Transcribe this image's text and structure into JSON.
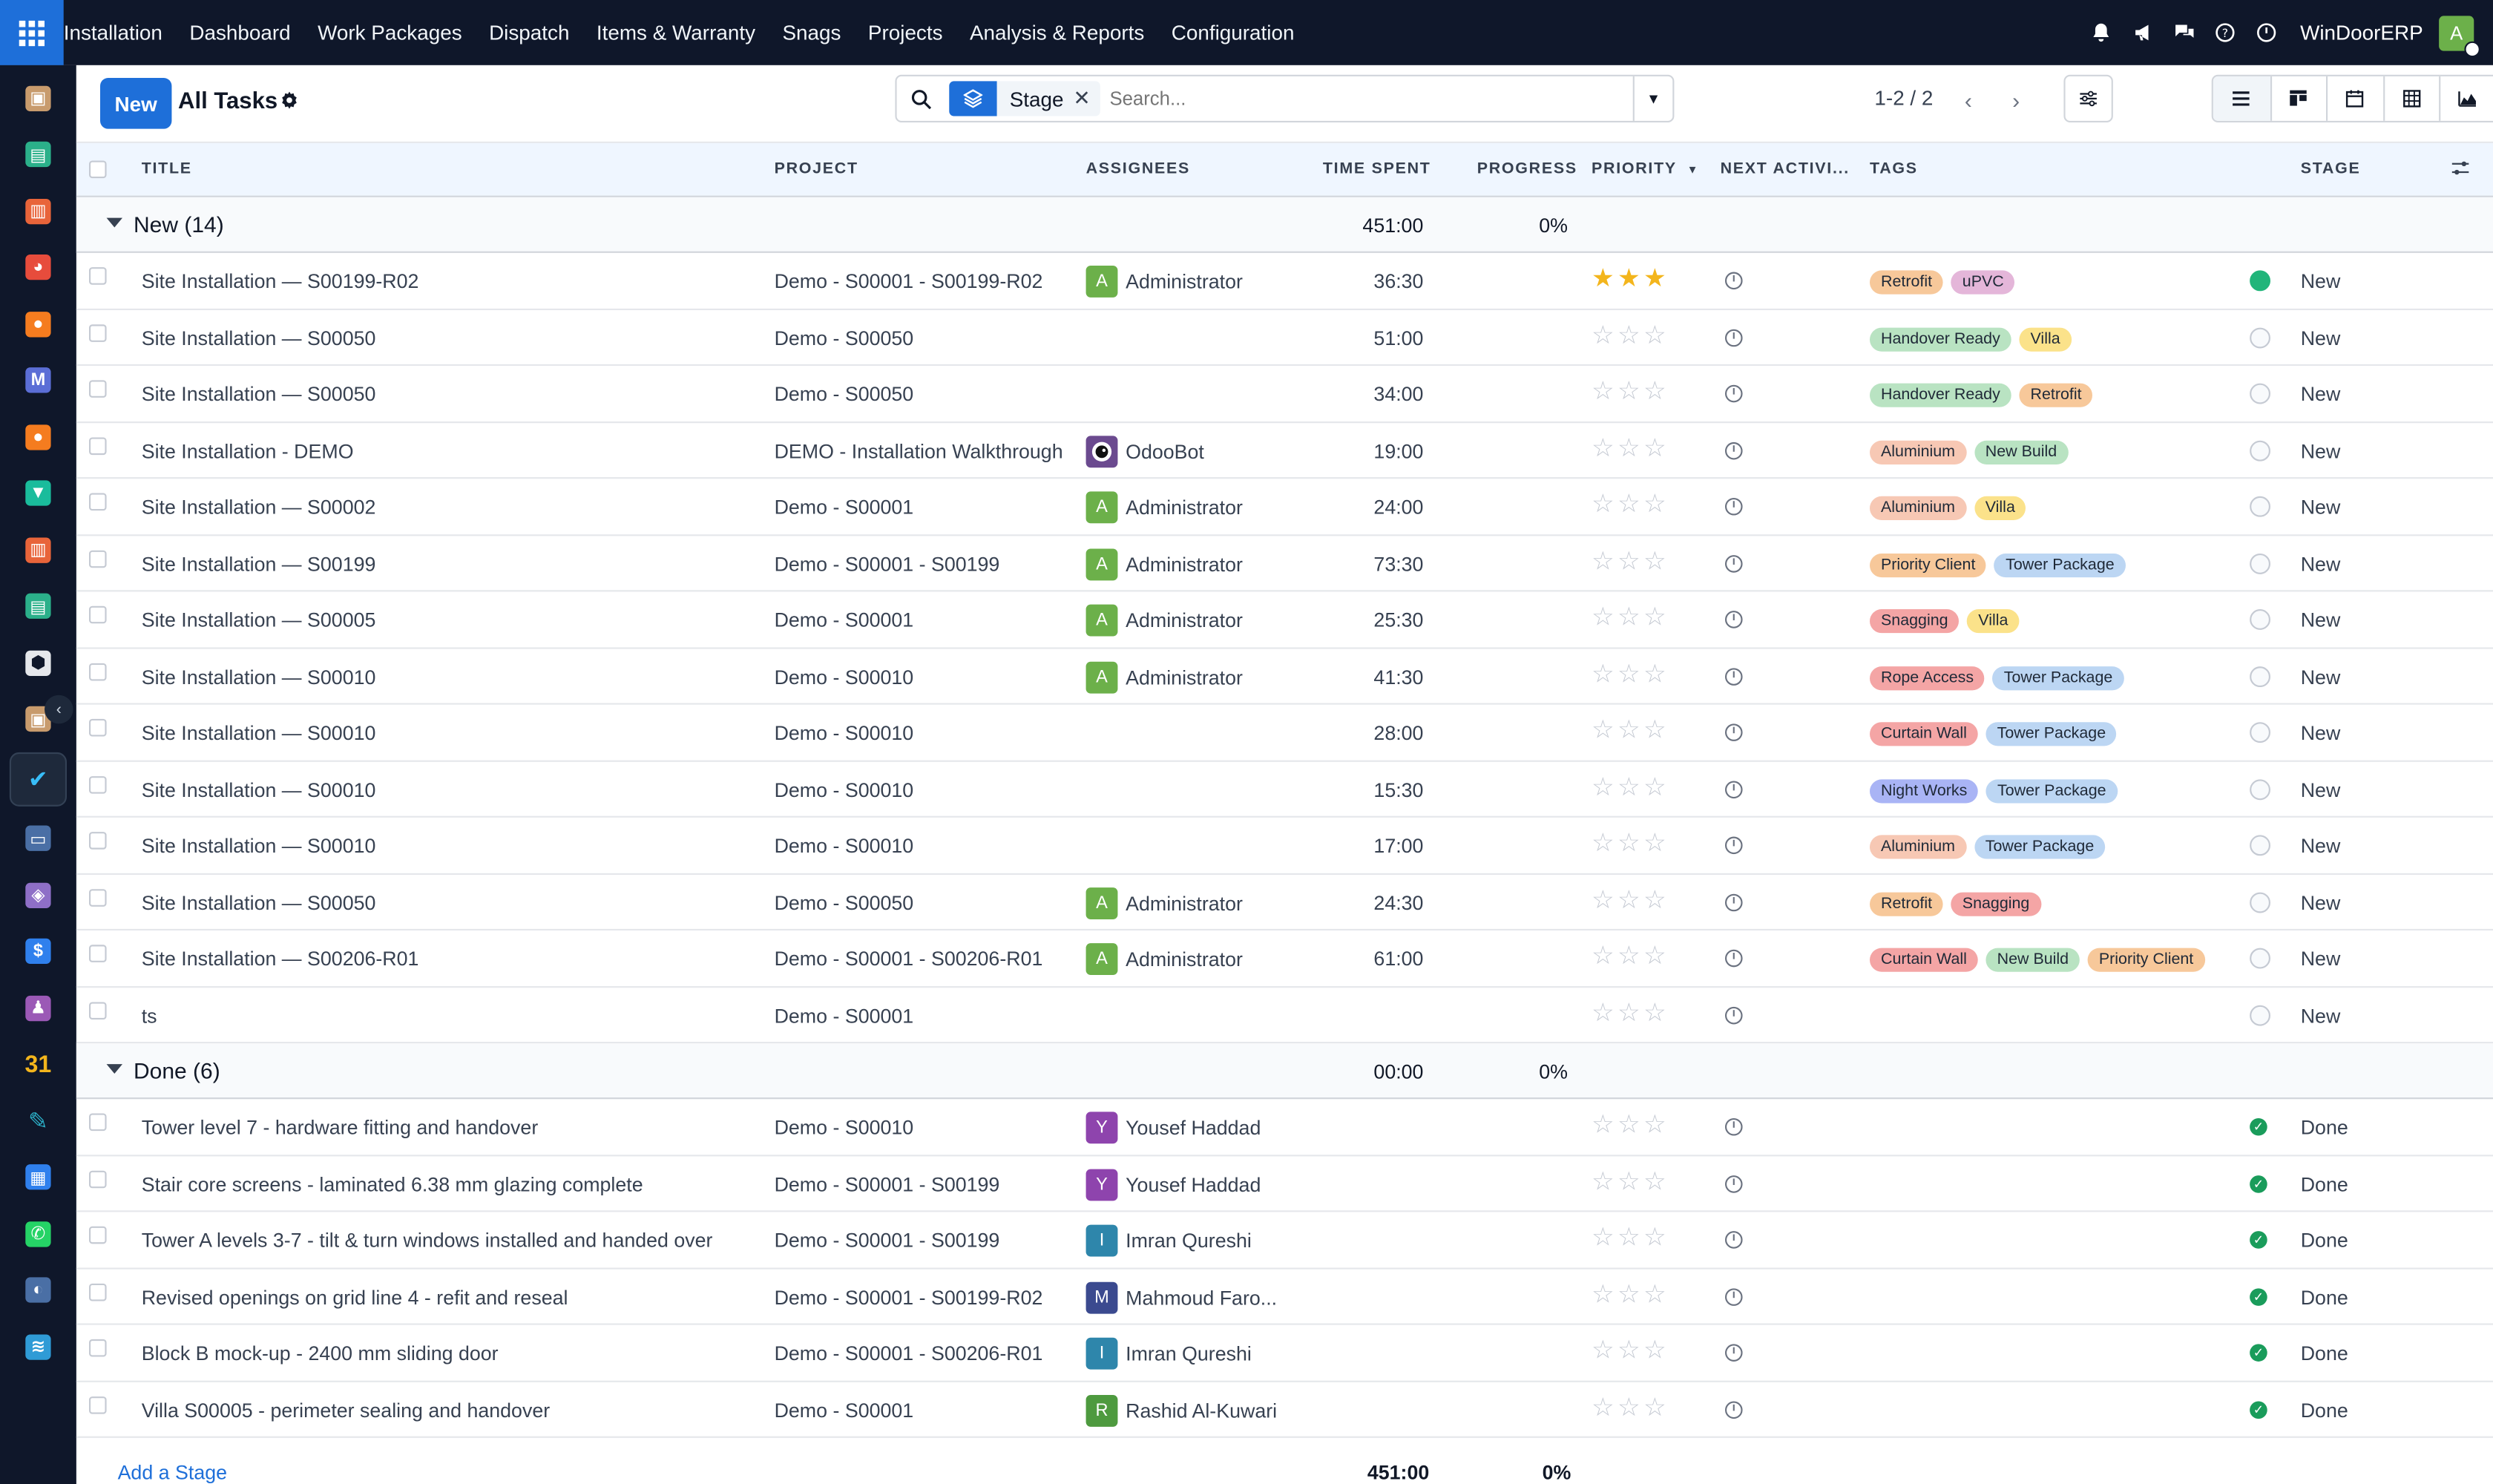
{
  "topbar": {
    "menu": [
      "Installation",
      "Dashboard",
      "Work Packages",
      "Dispatch",
      "Items & Warranty",
      "Snags",
      "Projects",
      "Analysis & Reports",
      "Configuration"
    ],
    "company": "WinDoorERP",
    "user_initial": "A"
  },
  "sidebar": {
    "icons": [
      {
        "name": "app-photo-icon",
        "color": "#c89b6d",
        "glyph": "▣"
      },
      {
        "name": "app-contacts-icon",
        "color": "#2bb08a",
        "glyph": "▤"
      },
      {
        "name": "app-reports-icon",
        "color": "#e8643a",
        "glyph": "▥"
      },
      {
        "name": "app-pie-icon",
        "color": "#e74c3c",
        "glyph": "◕"
      },
      {
        "name": "app-chat-icon",
        "color": "#f57c1f",
        "glyph": "●"
      },
      {
        "name": "app-mail-icon",
        "color": "#5b6ed6",
        "glyph": "M"
      },
      {
        "name": "app-chat2-icon",
        "color": "#f57c1f",
        "glyph": "●"
      },
      {
        "name": "app-sign-icon",
        "color": "#1abc9c",
        "glyph": "▼"
      },
      {
        "name": "app-stats-icon",
        "color": "#e8643a",
        "glyph": "▥"
      },
      {
        "name": "app-contacts2-icon",
        "color": "#2bb08a",
        "glyph": "▤"
      },
      {
        "name": "app-inventory-icon",
        "color": "#e5e7eb",
        "glyph": "⬢"
      },
      {
        "name": "app-photo2-icon",
        "color": "#c89b6d",
        "glyph": "▣"
      },
      {
        "name": "app-project-icon",
        "color": "#1e293b",
        "glyph": "✔",
        "active": true
      },
      {
        "name": "app-knowledge-icon",
        "color": "#4a6fa5",
        "glyph": "▭"
      },
      {
        "name": "app-box-icon",
        "color": "#8e6fc7",
        "glyph": "◈"
      },
      {
        "name": "app-invoice-icon",
        "color": "#2f80ed",
        "glyph": "$"
      },
      {
        "name": "app-team-icon",
        "color": "#9b59b6",
        "glyph": "♟"
      },
      {
        "name": "app-calendar-icon",
        "color": "#0f172a",
        "glyph": "31"
      },
      {
        "name": "app-sign2-icon",
        "color": "#0f172a",
        "glyph": "✎"
      },
      {
        "name": "app-dashboard-icon",
        "color": "#2f80ed",
        "glyph": "▦"
      },
      {
        "name": "app-whatsapp-icon",
        "color": "#25d366",
        "glyph": "✆"
      },
      {
        "name": "app-compass-icon",
        "color": "#4a6fa5",
        "glyph": "◐"
      },
      {
        "name": "app-wave-icon",
        "color": "#2f9bd6",
        "glyph": "≋"
      }
    ]
  },
  "control_panel": {
    "new_label": "New",
    "title": "All Tasks",
    "facet_label": "Stage",
    "search_placeholder": "Search...",
    "pager": "1-2 / 2"
  },
  "columns": {
    "title": "TITLE",
    "project": "PROJECT",
    "assignees": "ASSIGNEES",
    "time_spent": "TIME SPENT",
    "progress": "PROGRESS",
    "priority": "PRIORITY",
    "next_activity": "NEXT ACTIVI...",
    "tags": "TAGS",
    "stage": "STAGE"
  },
  "colors": {
    "tag": {
      "Retrofit": "#f7c89a",
      "uPVC": "#e4b6d9",
      "Handover Ready": "#b9e3c2",
      "Villa": "#fbe28a",
      "Aluminium": "#f7c8b4",
      "New Build": "#b9e3c2",
      "Priority Client": "#f7c89a",
      "Tower Package": "#bcd6f3",
      "Snagging": "#f4a5a5",
      "Rope Access": "#f4a5a5",
      "Curtain Wall": "#f4a5a5",
      "Night Works": "#a9b4f5"
    },
    "avatar": {
      "A": "#6cb04a",
      "Y": "#8e44ad",
      "I": "#2e86ab",
      "M": "#3b4a8f",
      "R": "#4e9a3f"
    }
  },
  "groups": [
    {
      "label": "New (14)",
      "time_total": "451:00",
      "progress_total": "0%",
      "rows": [
        {
          "title": "Site Installation — S00199-R02",
          "project": "Demo - S00001 - S00199-R02",
          "assignee": "Administrator",
          "initial": "A",
          "time": "36:30",
          "stars": 3,
          "tags": [
            "Retrofit",
            "uPVC"
          ],
          "state": "green",
          "stage": "New"
        },
        {
          "title": "Site Installation — S00050",
          "project": "Demo - S00050",
          "assignee": "",
          "initial": "",
          "time": "51:00",
          "stars": 0,
          "tags": [
            "Handover Ready",
            "Villa"
          ],
          "state": "grey",
          "stage": "New"
        },
        {
          "title": "Site Installation — S00050",
          "project": "Demo - S00050",
          "assignee": "",
          "initial": "",
          "time": "34:00",
          "stars": 0,
          "tags": [
            "Handover Ready",
            "Retrofit"
          ],
          "state": "grey",
          "stage": "New"
        },
        {
          "title": "Site Installation - DEMO",
          "project": "DEMO - Installation Walkthrough",
          "assignee": "OdooBot",
          "initial": "bot",
          "time": "19:00",
          "stars": 0,
          "tags": [
            "Aluminium",
            "New Build"
          ],
          "state": "grey",
          "stage": "New"
        },
        {
          "title": "Site Installation — S00002",
          "project": "Demo - S00001",
          "assignee": "Administrator",
          "initial": "A",
          "time": "24:00",
          "stars": 0,
          "tags": [
            "Aluminium",
            "Villa"
          ],
          "state": "grey",
          "stage": "New"
        },
        {
          "title": "Site Installation — S00199",
          "project": "Demo - S00001 - S00199",
          "assignee": "Administrator",
          "initial": "A",
          "time": "73:30",
          "stars": 0,
          "tags": [
            "Priority Client",
            "Tower Package"
          ],
          "state": "grey",
          "stage": "New"
        },
        {
          "title": "Site Installation — S00005",
          "project": "Demo - S00001",
          "assignee": "Administrator",
          "initial": "A",
          "time": "25:30",
          "stars": 0,
          "tags": [
            "Snagging",
            "Villa"
          ],
          "state": "grey",
          "stage": "New"
        },
        {
          "title": "Site Installation — S00010",
          "project": "Demo - S00010",
          "assignee": "Administrator",
          "initial": "A",
          "time": "41:30",
          "stars": 0,
          "tags": [
            "Rope Access",
            "Tower Package"
          ],
          "state": "grey",
          "stage": "New"
        },
        {
          "title": "Site Installation — S00010",
          "project": "Demo - S00010",
          "assignee": "",
          "initial": "",
          "time": "28:00",
          "stars": 0,
          "tags": [
            "Curtain Wall",
            "Tower Package"
          ],
          "state": "grey",
          "stage": "New"
        },
        {
          "title": "Site Installation — S00010",
          "project": "Demo - S00010",
          "assignee": "",
          "initial": "",
          "time": "15:30",
          "stars": 0,
          "tags": [
            "Night Works",
            "Tower Package"
          ],
          "state": "grey",
          "stage": "New"
        },
        {
          "title": "Site Installation — S00010",
          "project": "Demo - S00010",
          "assignee": "",
          "initial": "",
          "time": "17:00",
          "stars": 0,
          "tags": [
            "Aluminium",
            "Tower Package"
          ],
          "state": "grey",
          "stage": "New"
        },
        {
          "title": "Site Installation — S00050",
          "project": "Demo - S00050",
          "assignee": "Administrator",
          "initial": "A",
          "time": "24:30",
          "stars": 0,
          "tags": [
            "Retrofit",
            "Snagging"
          ],
          "state": "grey",
          "stage": "New"
        },
        {
          "title": "Site Installation — S00206-R01",
          "project": "Demo - S00001 - S00206-R01",
          "assignee": "Administrator",
          "initial": "A",
          "time": "61:00",
          "stars": 0,
          "tags": [
            "Curtain Wall",
            "New Build",
            "Priority Client"
          ],
          "state": "grey",
          "stage": "New"
        },
        {
          "title": "ts",
          "project": "Demo - S00001",
          "assignee": "",
          "initial": "",
          "time": "",
          "stars": 0,
          "tags": [],
          "state": "grey",
          "stage": "New"
        }
      ]
    },
    {
      "label": "Done (6)",
      "time_total": "00:00",
      "progress_total": "0%",
      "rows": [
        {
          "title": "Tower level 7 - hardware fitting and handover",
          "project": "Demo - S00010",
          "assignee": "Yousef Haddad",
          "initial": "Y",
          "time": "",
          "stars": 0,
          "tags": [],
          "state": "done",
          "stage": "Done"
        },
        {
          "title": "Stair core screens - laminated 6.38 mm glazing complete",
          "project": "Demo - S00001 - S00199",
          "assignee": "Yousef Haddad",
          "initial": "Y",
          "time": "",
          "stars": 0,
          "tags": [],
          "state": "done",
          "stage": "Done"
        },
        {
          "title": "Tower A levels 3-7 - tilt & turn windows installed and handed over",
          "project": "Demo - S00001 - S00199",
          "assignee": "Imran Qureshi",
          "initial": "I",
          "time": "",
          "stars": 0,
          "tags": [],
          "state": "done",
          "stage": "Done"
        },
        {
          "title": "Revised openings on grid line 4 - refit and reseal",
          "project": "Demo - S00001 - S00199-R02",
          "assignee": "Mahmoud Faro...",
          "initial": "M",
          "time": "",
          "stars": 0,
          "tags": [],
          "state": "done",
          "stage": "Done"
        },
        {
          "title": "Block B mock-up - 2400 mm sliding door",
          "project": "Demo - S00001 - S00206-R01",
          "assignee": "Imran Qureshi",
          "initial": "I",
          "time": "",
          "stars": 0,
          "tags": [],
          "state": "done",
          "stage": "Done"
        },
        {
          "title": "Villa S00005 - perimeter sealing and handover",
          "project": "Demo - S00001",
          "assignee": "Rashid Al-Kuwari",
          "initial": "R",
          "time": "",
          "stars": 0,
          "tags": [],
          "state": "done",
          "stage": "Done"
        }
      ]
    }
  ],
  "footer": {
    "add_stage": "Add a Stage",
    "time_total": "451:00",
    "progress_total": "0%"
  }
}
